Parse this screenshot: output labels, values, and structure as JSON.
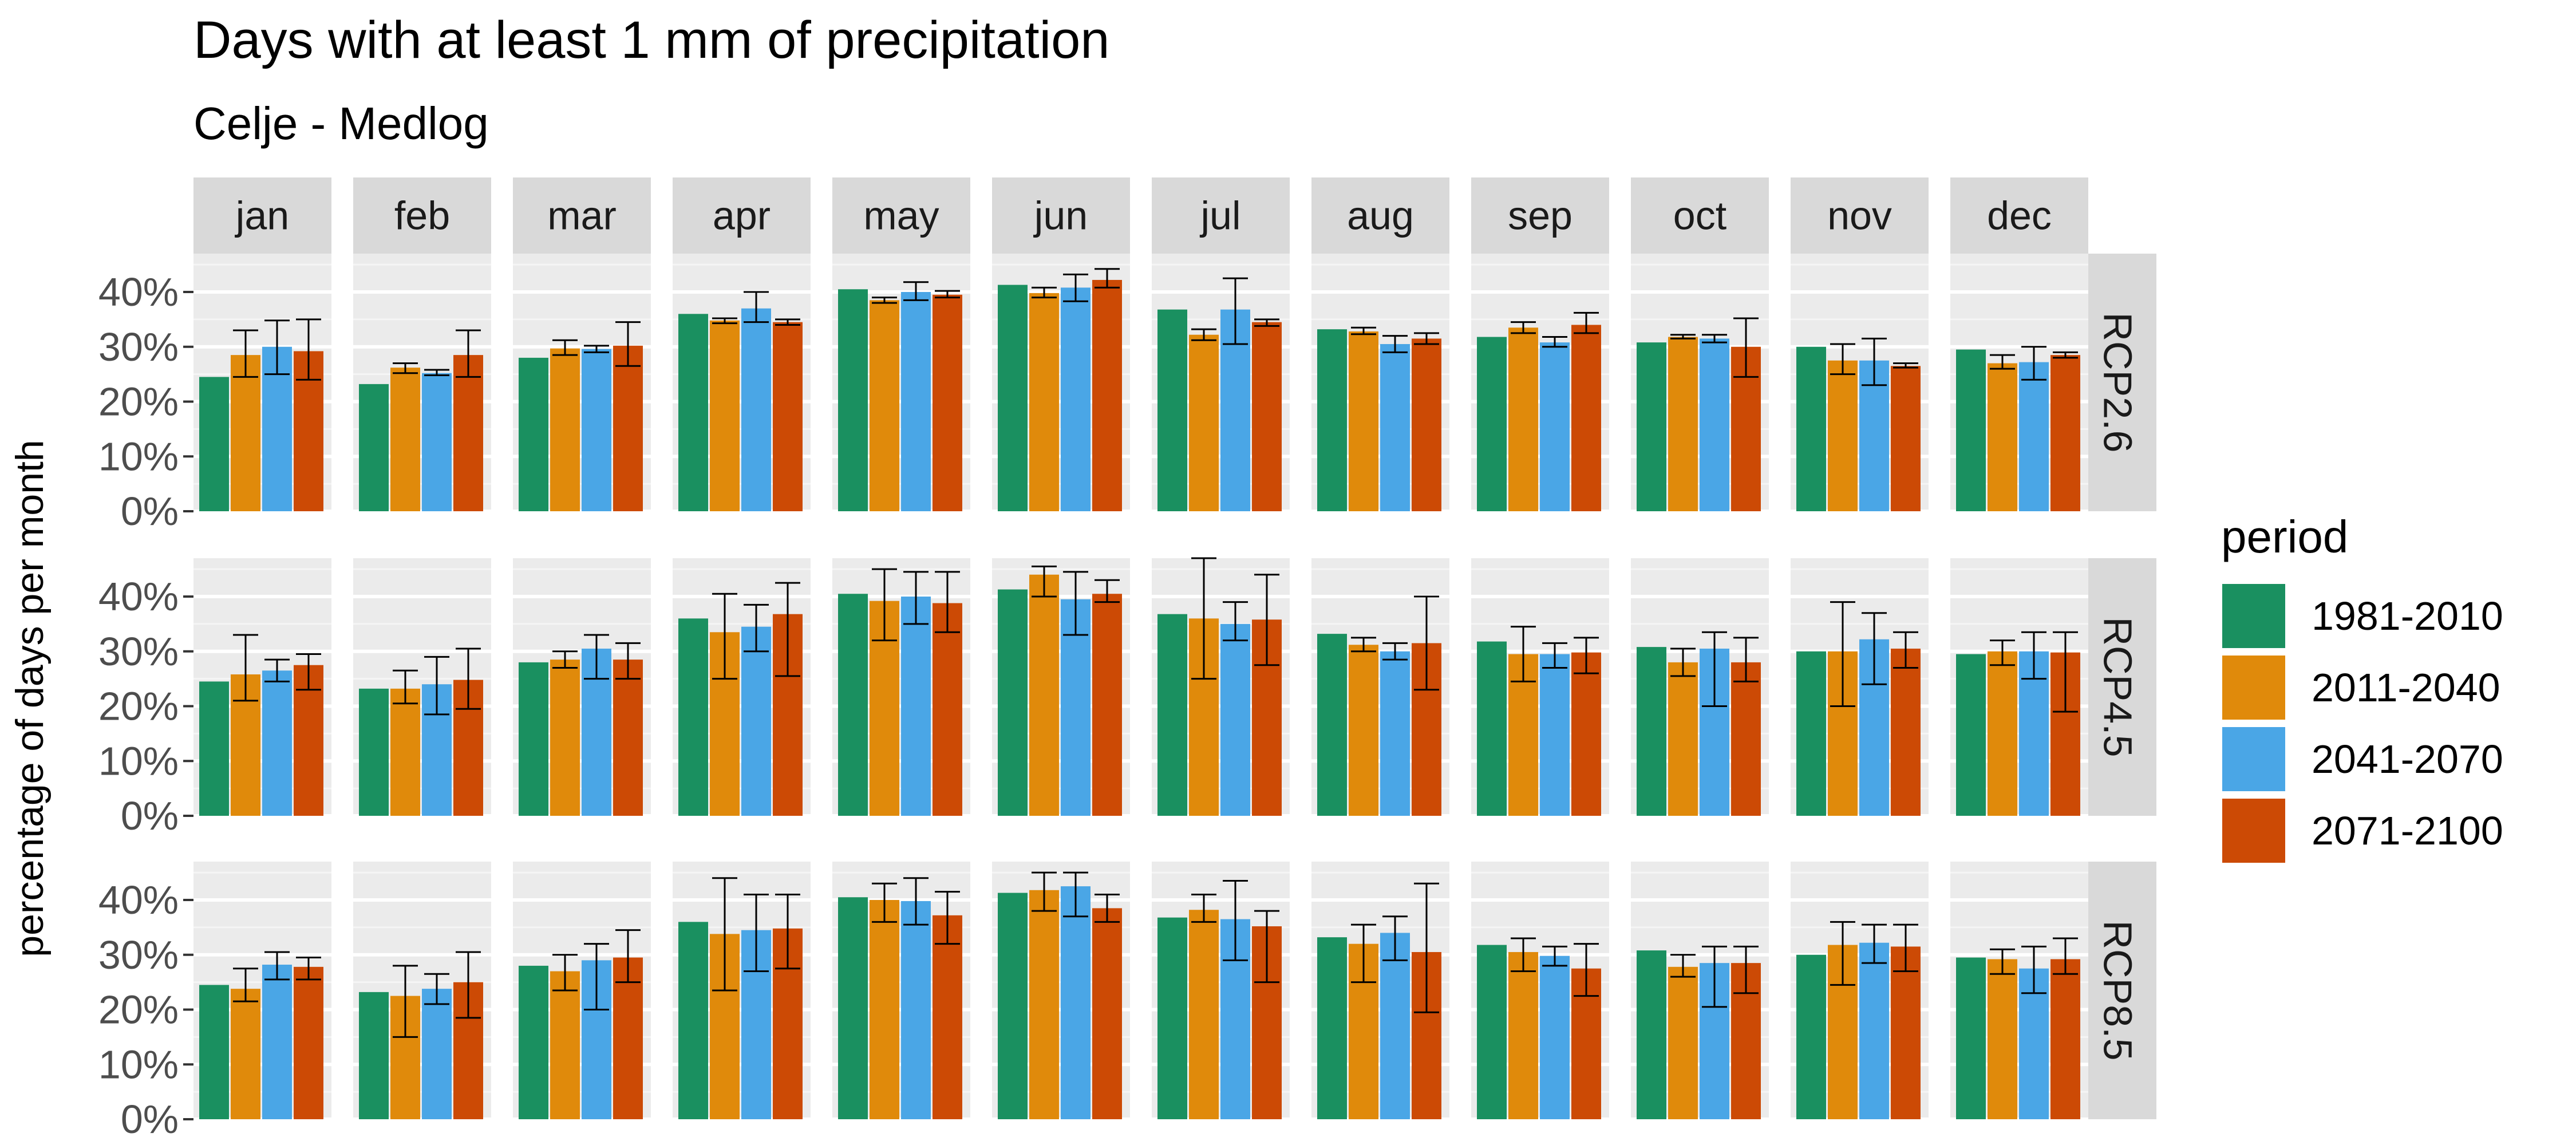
{
  "chart_data": {
    "type": "bar",
    "title": "Days with at least 1 mm of precipitation",
    "subtitle": "Celje - Medlog",
    "ylabel": "percentage of days per month",
    "xlabel": "",
    "ylim": [
      0,
      0.47
    ],
    "y_ticks": [
      0,
      0.1,
      0.2,
      0.3,
      0.4
    ],
    "y_tick_labels": [
      "0%",
      "10%",
      "20%",
      "30%",
      "40%"
    ],
    "grid": true,
    "legend_title": "period",
    "legend_position": "right",
    "columns": [
      "jan",
      "feb",
      "mar",
      "apr",
      "may",
      "jun",
      "jul",
      "aug",
      "sep",
      "oct",
      "nov",
      "dec"
    ],
    "rows": [
      "RCP2.6",
      "RCP4.5",
      "RCP8.5"
    ],
    "series": [
      {
        "name": "1981-2010",
        "color": "#1a9060"
      },
      {
        "name": "2011-2040",
        "color": "#e08a0b"
      },
      {
        "name": "2041-2070",
        "color": "#4aa6e6"
      },
      {
        "name": "2071-2100",
        "color": "#cc4a05"
      }
    ],
    "values": [
      [
        [
          0.245,
          0.285,
          0.3,
          0.292
        ],
        [
          0.232,
          0.262,
          0.252,
          0.285
        ],
        [
          0.28,
          0.297,
          0.296,
          0.302
        ],
        [
          0.36,
          0.348,
          0.37,
          0.345
        ],
        [
          0.405,
          0.385,
          0.4,
          0.395
        ],
        [
          0.413,
          0.398,
          0.408,
          0.422
        ],
        [
          0.368,
          0.322,
          0.368,
          0.345
        ],
        [
          0.332,
          0.328,
          0.305,
          0.315
        ],
        [
          0.318,
          0.335,
          0.308,
          0.34
        ],
        [
          0.308,
          0.318,
          0.315,
          0.3
        ],
        [
          0.3,
          0.275,
          0.275,
          0.265
        ],
        [
          0.295,
          0.27,
          0.272,
          0.285
        ]
      ],
      [
        [
          0.245,
          0.258,
          0.265,
          0.275
        ],
        [
          0.232,
          0.232,
          0.24,
          0.248
        ],
        [
          0.28,
          0.285,
          0.305,
          0.285
        ],
        [
          0.36,
          0.335,
          0.345,
          0.368
        ],
        [
          0.405,
          0.392,
          0.4,
          0.388
        ],
        [
          0.413,
          0.44,
          0.395,
          0.405
        ],
        [
          0.368,
          0.36,
          0.35,
          0.358
        ],
        [
          0.332,
          0.312,
          0.3,
          0.315
        ],
        [
          0.318,
          0.295,
          0.295,
          0.298
        ],
        [
          0.308,
          0.28,
          0.305,
          0.28
        ],
        [
          0.3,
          0.3,
          0.322,
          0.305
        ],
        [
          0.295,
          0.3,
          0.3,
          0.298
        ]
      ],
      [
        [
          0.245,
          0.238,
          0.282,
          0.278
        ],
        [
          0.232,
          0.225,
          0.238,
          0.25
        ],
        [
          0.28,
          0.27,
          0.29,
          0.295
        ],
        [
          0.36,
          0.338,
          0.345,
          0.348
        ],
        [
          0.405,
          0.4,
          0.398,
          0.372
        ],
        [
          0.413,
          0.418,
          0.425,
          0.385
        ],
        [
          0.368,
          0.382,
          0.365,
          0.352
        ],
        [
          0.332,
          0.32,
          0.34,
          0.305
        ],
        [
          0.318,
          0.305,
          0.298,
          0.275
        ],
        [
          0.308,
          0.278,
          0.285,
          0.285
        ],
        [
          0.3,
          0.318,
          0.322,
          0.315
        ],
        [
          0.295,
          0.292,
          0.275,
          0.292
        ]
      ]
    ],
    "error_bars": [
      [
        [
          null,
          [
            0.245,
            0.33
          ],
          [
            0.25,
            0.348
          ],
          [
            0.24,
            0.35
          ]
        ],
        [
          null,
          [
            0.252,
            0.27
          ],
          [
            0.248,
            0.258
          ],
          [
            0.245,
            0.33
          ]
        ],
        [
          null,
          [
            0.285,
            0.312
          ],
          [
            0.29,
            0.302
          ],
          [
            0.265,
            0.345
          ]
        ],
        [
          null,
          [
            0.343,
            0.352
          ],
          [
            0.345,
            0.4
          ],
          [
            0.34,
            0.35
          ]
        ],
        [
          null,
          [
            0.38,
            0.39
          ],
          [
            0.385,
            0.418
          ],
          [
            0.39,
            0.402
          ]
        ],
        [
          null,
          [
            0.39,
            0.408
          ],
          [
            0.383,
            0.432
          ],
          [
            0.408,
            0.442
          ]
        ],
        [
          null,
          [
            0.312,
            0.332
          ],
          [
            0.305,
            0.425
          ],
          [
            0.338,
            0.35
          ]
        ],
        [
          null,
          [
            0.323,
            0.335
          ],
          [
            0.29,
            0.32
          ],
          [
            0.305,
            0.325
          ]
        ],
        [
          null,
          [
            0.325,
            0.345
          ],
          [
            0.3,
            0.318
          ],
          [
            0.325,
            0.362
          ]
        ],
        [
          null,
          [
            0.315,
            0.322
          ],
          [
            0.308,
            0.322
          ],
          [
            0.245,
            0.352
          ]
        ],
        [
          null,
          [
            0.25,
            0.305
          ],
          [
            0.23,
            0.315
          ],
          [
            0.262,
            0.27
          ]
        ],
        [
          null,
          [
            0.26,
            0.285
          ],
          [
            0.24,
            0.3
          ],
          [
            0.28,
            0.29
          ]
        ]
      ],
      [
        [
          null,
          [
            0.21,
            0.33
          ],
          [
            0.245,
            0.285
          ],
          [
            0.23,
            0.295
          ]
        ],
        [
          null,
          [
            0.205,
            0.265
          ],
          [
            0.185,
            0.29
          ],
          [
            0.195,
            0.305
          ]
        ],
        [
          null,
          [
            0.27,
            0.3
          ],
          [
            0.25,
            0.33
          ],
          [
            0.25,
            0.315
          ]
        ],
        [
          null,
          [
            0.25,
            0.405
          ],
          [
            0.3,
            0.385
          ],
          [
            0.255,
            0.425
          ]
        ],
        [
          null,
          [
            0.32,
            0.45
          ],
          [
            0.35,
            0.445
          ],
          [
            0.335,
            0.445
          ]
        ],
        [
          null,
          [
            0.4,
            0.455
          ],
          [
            0.33,
            0.445
          ],
          [
            0.39,
            0.43
          ]
        ],
        [
          null,
          [
            0.25,
            0.47
          ],
          [
            0.32,
            0.39
          ],
          [
            0.275,
            0.44
          ]
        ],
        [
          null,
          [
            0.3,
            0.325
          ],
          [
            0.285,
            0.315
          ],
          [
            0.23,
            0.4
          ]
        ],
        [
          null,
          [
            0.245,
            0.345
          ],
          [
            0.27,
            0.315
          ],
          [
            0.26,
            0.325
          ]
        ],
        [
          null,
          [
            0.255,
            0.305
          ],
          [
            0.2,
            0.335
          ],
          [
            0.245,
            0.325
          ]
        ],
        [
          null,
          [
            0.2,
            0.39
          ],
          [
            0.24,
            0.37
          ],
          [
            0.27,
            0.335
          ]
        ],
        [
          null,
          [
            0.275,
            0.32
          ],
          [
            0.25,
            0.335
          ],
          [
            0.19,
            0.335
          ]
        ]
      ],
      [
        [
          null,
          [
            0.215,
            0.275
          ],
          [
            0.255,
            0.305
          ],
          [
            0.255,
            0.295
          ]
        ],
        [
          null,
          [
            0.15,
            0.28
          ],
          [
            0.21,
            0.265
          ],
          [
            0.185,
            0.305
          ]
        ],
        [
          null,
          [
            0.235,
            0.3
          ],
          [
            0.2,
            0.32
          ],
          [
            0.25,
            0.345
          ]
        ],
        [
          null,
          [
            0.235,
            0.44
          ],
          [
            0.27,
            0.41
          ],
          [
            0.275,
            0.41
          ]
        ],
        [
          null,
          [
            0.36,
            0.43
          ],
          [
            0.355,
            0.44
          ],
          [
            0.32,
            0.415
          ]
        ],
        [
          null,
          [
            0.38,
            0.45
          ],
          [
            0.37,
            0.45
          ],
          [
            0.36,
            0.41
          ]
        ],
        [
          null,
          [
            0.36,
            0.41
          ],
          [
            0.29,
            0.435
          ],
          [
            0.25,
            0.38
          ]
        ],
        [
          null,
          [
            0.25,
            0.355
          ],
          [
            0.29,
            0.37
          ],
          [
            0.195,
            0.43
          ]
        ],
        [
          null,
          [
            0.27,
            0.33
          ],
          [
            0.28,
            0.315
          ],
          [
            0.225,
            0.32
          ]
        ],
        [
          null,
          [
            0.26,
            0.3
          ],
          [
            0.205,
            0.315
          ],
          [
            0.23,
            0.315
          ]
        ],
        [
          null,
          [
            0.245,
            0.36
          ],
          [
            0.285,
            0.355
          ],
          [
            0.27,
            0.355
          ]
        ],
        [
          null,
          [
            0.265,
            0.31
          ],
          [
            0.23,
            0.315
          ],
          [
            0.265,
            0.33
          ]
        ]
      ]
    ]
  }
}
